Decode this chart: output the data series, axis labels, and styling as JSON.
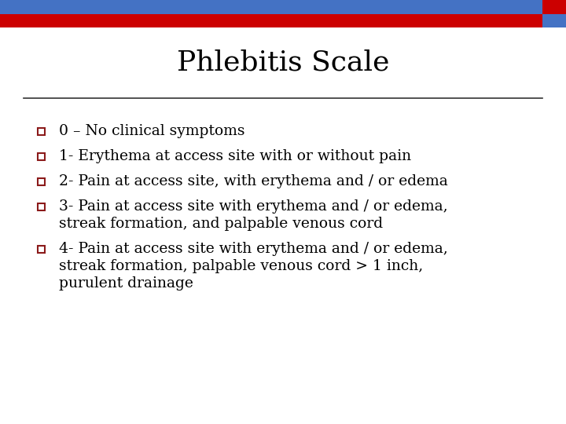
{
  "title": "Phlebitis Scale",
  "title_fontsize": 26,
  "title_font": "serif",
  "bg_color": "#ffffff",
  "header_bar1_color": "#4472C4",
  "header_bar2_color": "#CC0000",
  "bullet_color": "#8B1A1A",
  "text_color": "#000000",
  "text_fontsize": 13.5,
  "items": [
    {
      "label": "0 – No clinical symptoms",
      "extra_lines": []
    },
    {
      "label": "1- Erythema at access site with or without pain",
      "extra_lines": []
    },
    {
      "label": "2- Pain at access site, with erythema and / or edema",
      "extra_lines": []
    },
    {
      "label": "3- Pain at access site with erythema and / or edema,",
      "extra_lines": [
        "streak formation, and palpable venous cord"
      ]
    },
    {
      "label": "4- Pain at access site with erythema and / or edema,",
      "extra_lines": [
        "streak formation, palpable venous cord > 1 inch,",
        "purulent drainage"
      ]
    }
  ]
}
